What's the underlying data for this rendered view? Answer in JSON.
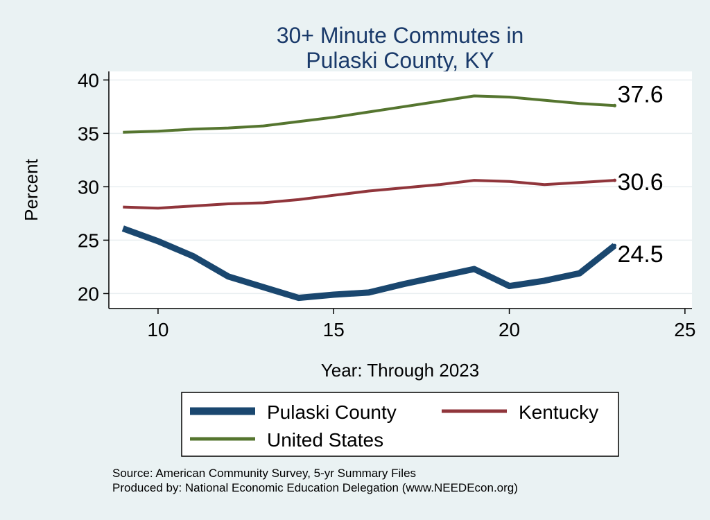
{
  "chart_data": {
    "type": "line",
    "title": [
      "30+ Minute Commutes in",
      "Pulaski County, KY"
    ],
    "xlabel": "Year: Through 2023",
    "ylabel": "Percent",
    "xlim": [
      8.6,
      25.2
    ],
    "ylim": [
      18.6,
      40.8
    ],
    "x_ticks": [
      10,
      15,
      20,
      25
    ],
    "y_ticks": [
      20,
      25,
      30,
      35,
      40
    ],
    "grid": true,
    "legend_position": "bottom",
    "series": [
      {
        "name": "Pulaski County",
        "color": "#1a476f",
        "width": "thick",
        "x": [
          9,
          10,
          11,
          12,
          13,
          14,
          15,
          16,
          17,
          18,
          19,
          20,
          21,
          22,
          23
        ],
        "values": [
          26.1,
          24.9,
          23.5,
          21.6,
          20.6,
          19.6,
          19.9,
          20.1,
          20.9,
          21.6,
          22.3,
          20.7,
          21.2,
          21.9,
          24.5
        ],
        "end_label": "24.5"
      },
      {
        "name": "Kentucky",
        "color": "#90353b",
        "width": "medium",
        "x": [
          9,
          10,
          11,
          12,
          13,
          14,
          15,
          16,
          17,
          18,
          19,
          20,
          21,
          22,
          23
        ],
        "values": [
          28.1,
          28.0,
          28.2,
          28.4,
          28.5,
          28.8,
          29.2,
          29.6,
          29.9,
          30.2,
          30.6,
          30.5,
          30.2,
          30.4,
          30.6
        ],
        "end_label": "30.6"
      },
      {
        "name": "United States",
        "color": "#55752f",
        "width": "medium",
        "x": [
          9,
          10,
          11,
          12,
          13,
          14,
          15,
          16,
          17,
          18,
          19,
          20,
          21,
          22,
          23
        ],
        "values": [
          35.1,
          35.2,
          35.4,
          35.5,
          35.7,
          36.1,
          36.5,
          37.0,
          37.5,
          38.0,
          38.5,
          38.4,
          38.1,
          37.8,
          37.6
        ],
        "end_label": "37.6"
      }
    ],
    "notes": [
      "Source: American Community Survey, 5-yr Summary Files",
      "Produced by: National Economic Education Delegation (www.NEEDEcon.org)"
    ]
  }
}
